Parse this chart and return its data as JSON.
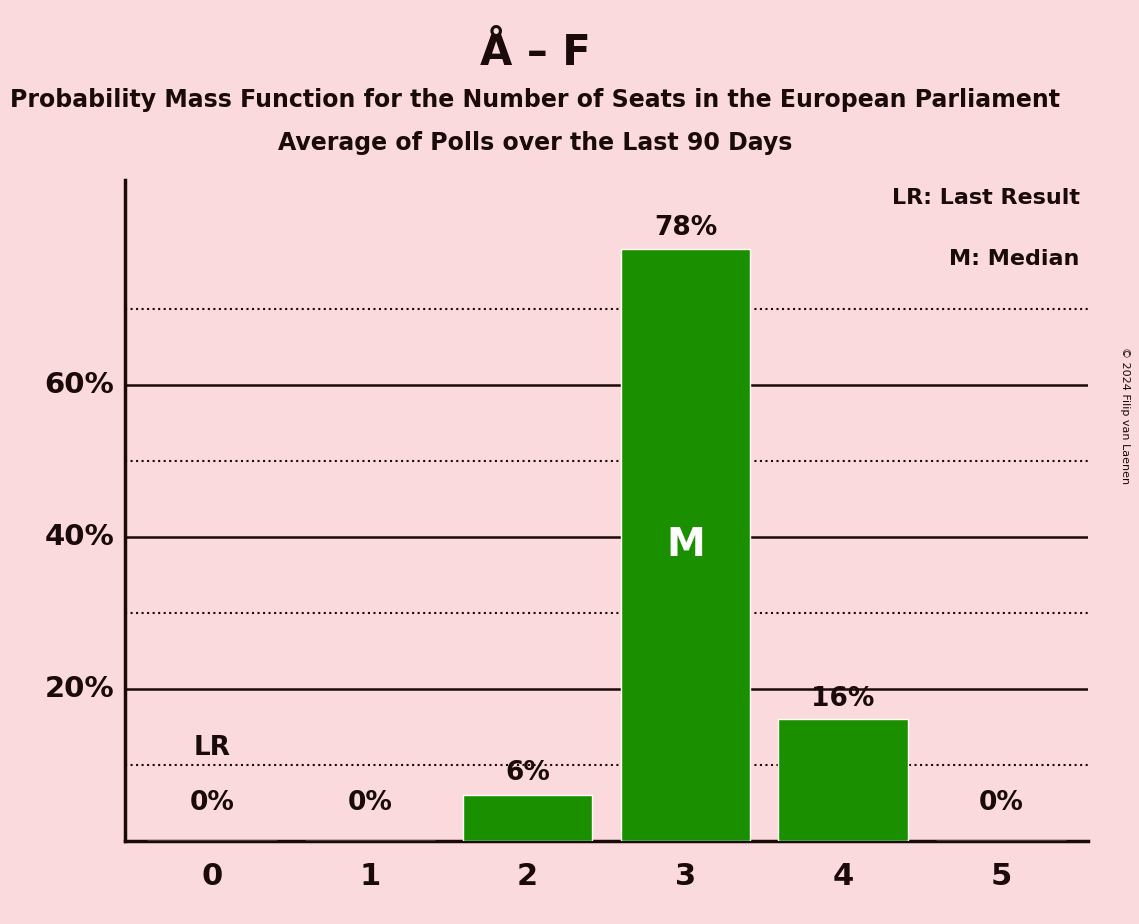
{
  "title": "Å – F",
  "subtitle1": "Probability Mass Function for the Number of Seats in the European Parliament",
  "subtitle2": "Average of Polls over the Last 90 Days",
  "copyright": "© 2024 Filip van Laenen",
  "categories": [
    0,
    1,
    2,
    3,
    4,
    5
  ],
  "values": [
    0,
    0,
    6,
    78,
    16,
    0
  ],
  "bar_color": "#1a8f00",
  "background_color": "#fadadd",
  "text_color": "#1a0a0a",
  "median_seat": 3,
  "lr_seat": 0,
  "lr_label": "LR",
  "median_label": "M",
  "bar_labels": [
    "0%",
    "0%",
    "6%",
    "78%",
    "16%",
    "0%"
  ],
  "ymajor_labels": [
    "20%",
    "40%",
    "60%"
  ],
  "ymajor_values": [
    20,
    40,
    60
  ],
  "ylim": [
    0,
    87
  ],
  "legend_text1": "LR: Last Result",
  "legend_text2": "M: Median",
  "dotted_line_y": [
    10,
    30,
    50,
    70
  ],
  "title_fontsize": 30,
  "subtitle_fontsize": 17,
  "bar_label_fontsize": 19,
  "axis_tick_fontsize": 22,
  "ylabel_fontsize": 21,
  "median_label_fontsize": 28,
  "legend_fontsize": 16
}
